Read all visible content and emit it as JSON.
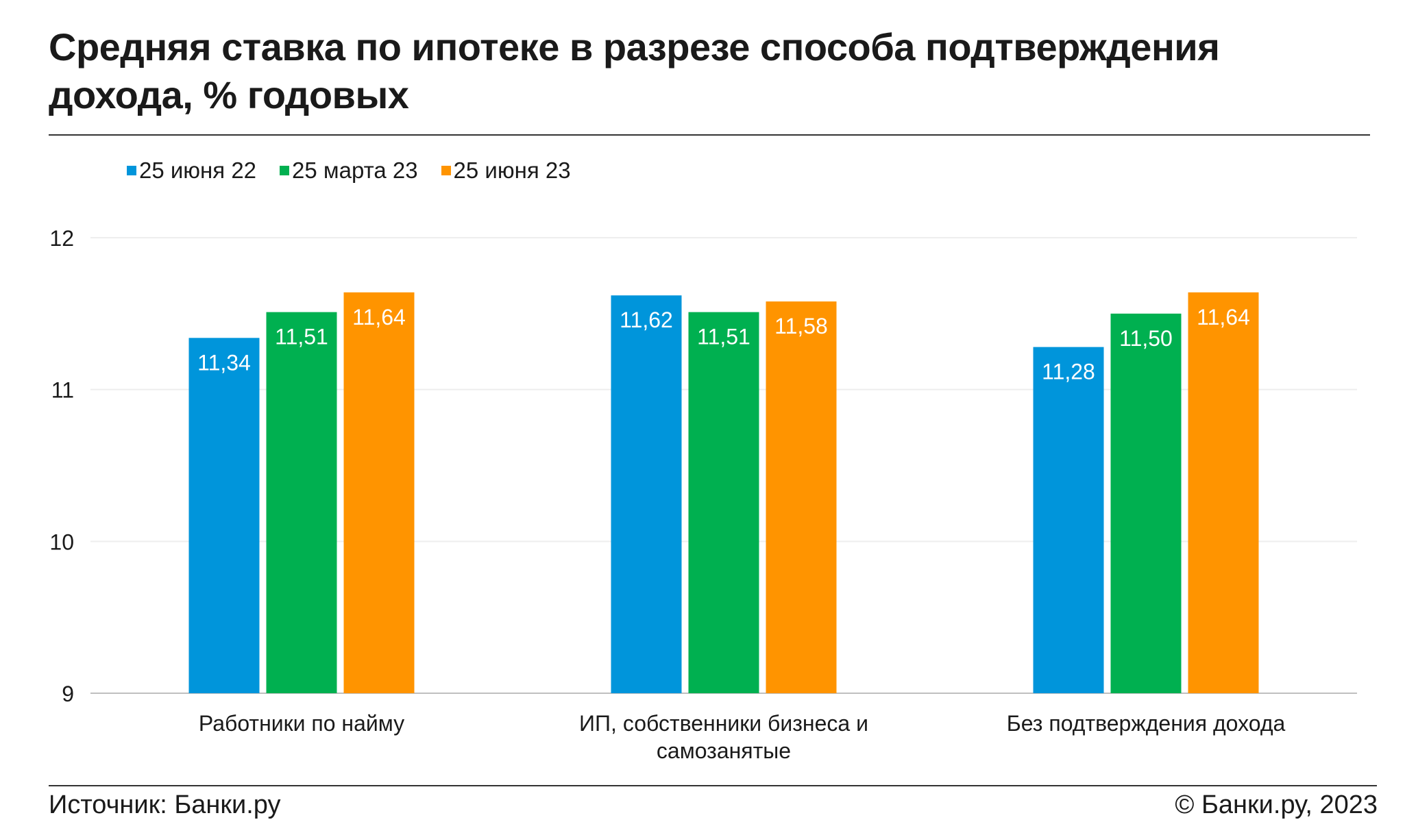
{
  "title": "Средняя ставка по ипотеке в разрезе способа подтверждения дохода, % годовых",
  "footer": {
    "source": "Источник: Банки.ру",
    "copyright": "© Банки.ру, 2023"
  },
  "colors": {
    "series_1": "#0095db",
    "series_2": "#00b050",
    "series_3": "#ff9400",
    "gridline": "#eeeeee",
    "axis": "#bfbfbf"
  },
  "chart_data": {
    "type": "bar",
    "title": "Средняя ставка по ипотеке в разрезе способа подтверждения дохода, % годовых",
    "categories": [
      [
        "Работники по найму"
      ],
      [
        "ИП, собственники бизнеса и",
        "самозанятые"
      ],
      [
        "Без подтверждения дохода"
      ]
    ],
    "series": [
      {
        "name": "25 июня 22",
        "color": "#0095db",
        "values": [
          11.34,
          11.62,
          11.28
        ],
        "labels": [
          "11,34",
          "11,62",
          "11,28"
        ]
      },
      {
        "name": "25 марта 23",
        "color": "#00b050",
        "values": [
          11.51,
          11.51,
          11.5
        ],
        "labels": [
          "11,51",
          "11,51",
          "11,50"
        ]
      },
      {
        "name": "25 июня 23",
        "color": "#ff9400",
        "values": [
          11.64,
          11.58,
          11.64
        ],
        "labels": [
          "11,64",
          "11,58",
          "11,64"
        ]
      }
    ],
    "ylim": [
      9,
      12
    ],
    "yticks": [
      9,
      10,
      11,
      12
    ],
    "grid": true,
    "legend": "top-left",
    "data_labels": "inside-top"
  }
}
